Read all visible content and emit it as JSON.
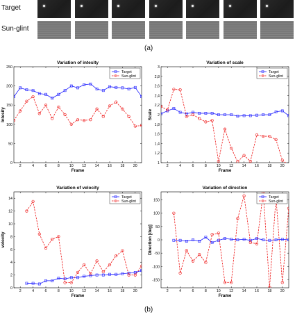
{
  "part_a": {
    "label": "(a)",
    "rows": [
      {
        "label": "Target",
        "kind": "target",
        "count": 7
      },
      {
        "label": "Sun-glint",
        "kind": "glint",
        "count": 7
      }
    ]
  },
  "part_b": {
    "label": "(b)"
  },
  "colors": {
    "target": "#1f1fff",
    "sunglint": "#ee1111"
  },
  "chart_data": [
    {
      "type": "line",
      "title": "Variation of intesity",
      "xlabel": "Frame",
      "ylabel": "Intesity",
      "xlim": [
        1,
        21
      ],
      "ylim": [
        0,
        250
      ],
      "xticks": [
        2,
        4,
        6,
        8,
        10,
        12,
        14,
        16,
        18,
        20
      ],
      "yticks": [
        0,
        50,
        100,
        150,
        200,
        250
      ],
      "legend": "top-right",
      "series": [
        {
          "name": "Target",
          "x": [
            1,
            2,
            3,
            4,
            5,
            6,
            7,
            8,
            9,
            10,
            11,
            12,
            13,
            14,
            15,
            16,
            17,
            18,
            19,
            20,
            21
          ],
          "values": [
            172,
            195,
            190,
            188,
            180,
            178,
            168,
            178,
            188,
            200,
            195,
            203,
            205,
            192,
            188,
            198,
            196,
            195,
            192,
            196,
            172
          ]
        },
        {
          "name": "Sun-glint",
          "x": [
            1,
            2,
            3,
            4,
            5,
            6,
            7,
            8,
            9,
            10,
            11,
            12,
            13,
            14,
            15,
            16,
            17,
            18,
            19,
            20,
            21
          ],
          "values": [
            110,
            135,
            160,
            172,
            128,
            150,
            115,
            145,
            125,
            100,
            112,
            110,
            112,
            140,
            120,
            148,
            158,
            140,
            120,
            95,
            97
          ]
        }
      ]
    },
    {
      "type": "line",
      "title": "Variation of scale",
      "xlabel": "Frame",
      "ylabel": "Scale",
      "xlim": [
        1,
        21
      ],
      "ylim": [
        1,
        3
      ],
      "xticks": [
        2,
        4,
        6,
        8,
        10,
        12,
        14,
        16,
        18,
        20
      ],
      "yticks": [
        1,
        1.2,
        1.4,
        1.6,
        1.8,
        2,
        2.2,
        2.4,
        2.6,
        2.8,
        3
      ],
      "ytick_labels": [
        "1",
        "1,2",
        "1,4",
        "1,6",
        "1,8",
        "2",
        "2,2",
        "2,4",
        "2,6",
        "2,8",
        "3"
      ],
      "legend": "top-right",
      "series": [
        {
          "name": "Target",
          "x": [
            1,
            2,
            3,
            4,
            5,
            6,
            7,
            8,
            9,
            10,
            11,
            12,
            13,
            14,
            15,
            16,
            17,
            18,
            19,
            20,
            21
          ],
          "values": [
            2.02,
            2.08,
            2.13,
            2.05,
            2.02,
            2.05,
            2.03,
            2.03,
            2.03,
            2.0,
            2.0,
            2.0,
            1.97,
            1.98,
            1.98,
            1.99,
            2.0,
            2.0,
            2.06,
            2.08,
            1.98
          ]
        },
        {
          "name": "Sun-glint",
          "x": [
            1,
            2,
            3,
            4,
            5,
            6,
            7,
            8,
            9,
            10,
            11,
            12,
            13,
            14,
            15,
            16,
            17,
            18,
            19,
            20,
            21
          ],
          "values": [
            2.17,
            2.1,
            2.53,
            2.52,
            1.96,
            2.0,
            1.92,
            1.85,
            1.88,
            1.03,
            1.7,
            1.3,
            1.02,
            1.15,
            1.03,
            1.58,
            1.55,
            1.55,
            1.48,
            1.05,
            0.95
          ]
        }
      ]
    },
    {
      "type": "line",
      "title": "Variation of velocity",
      "xlabel": "Frame",
      "ylabel": "velocity",
      "xlim": [
        1,
        21
      ],
      "ylim": [
        0,
        15
      ],
      "xticks": [
        2,
        4,
        6,
        8,
        10,
        12,
        14,
        16,
        18,
        20
      ],
      "yticks": [
        0,
        2,
        4,
        6,
        8,
        10,
        12,
        14
      ],
      "legend": "top-right",
      "series": [
        {
          "name": "Target",
          "x": [
            3,
            4,
            5,
            6,
            7,
            8,
            9,
            10,
            11,
            12,
            13,
            14,
            15,
            16,
            17,
            18,
            19,
            20,
            21
          ],
          "values": [
            0.7,
            0.7,
            0.6,
            1.1,
            1.1,
            1.5,
            1.4,
            1.6,
            1.6,
            1.8,
            1.9,
            2.0,
            2.0,
            2.1,
            2.1,
            2.2,
            2.3,
            2.4,
            2.7
          ]
        },
        {
          "name": "Sun-glint",
          "x": [
            3,
            4,
            5,
            6,
            7,
            8,
            9,
            10,
            11,
            12,
            13,
            14,
            15,
            16,
            17,
            18,
            19,
            20,
            21
          ],
          "values": [
            12.0,
            13.5,
            8.4,
            6.2,
            7.6,
            8.0,
            0.8,
            0.8,
            2.4,
            3.6,
            2.2,
            4.2,
            2.5,
            3.6,
            5.0,
            5.8,
            2.0,
            2.0,
            3.4
          ]
        }
      ]
    },
    {
      "type": "line",
      "title": "Variation of direction",
      "xlabel": "Frame",
      "ylabel": "Direction [deg]",
      "xlim": [
        1,
        21
      ],
      "ylim": [
        -180,
        180
      ],
      "xticks": [
        2,
        4,
        6,
        8,
        10,
        12,
        14,
        16,
        18,
        20
      ],
      "yticks": [
        -150,
        -100,
        -50,
        0,
        50,
        100,
        150
      ],
      "legend": "top-right",
      "series": [
        {
          "name": "Target",
          "x": [
            3,
            4,
            5,
            6,
            7,
            8,
            9,
            10,
            11,
            12,
            13,
            14,
            15,
            16,
            17,
            18,
            19,
            20,
            21
          ],
          "values": [
            -2,
            -2,
            -5,
            0,
            -5,
            10,
            -10,
            -2,
            5,
            2,
            0,
            2,
            -2,
            5,
            0,
            -2,
            0,
            2,
            0
          ]
        },
        {
          "name": "Sun-glint",
          "x": [
            3,
            4,
            5,
            6,
            7,
            8,
            9,
            10,
            11,
            12,
            13,
            14,
            15,
            16,
            17,
            18,
            19,
            20,
            21
          ],
          "values": [
            100,
            -125,
            -40,
            -80,
            -55,
            -85,
            20,
            25,
            -160,
            -160,
            80,
            165,
            -10,
            -15,
            178,
            -178,
            160,
            -160,
            118
          ]
        }
      ]
    }
  ]
}
